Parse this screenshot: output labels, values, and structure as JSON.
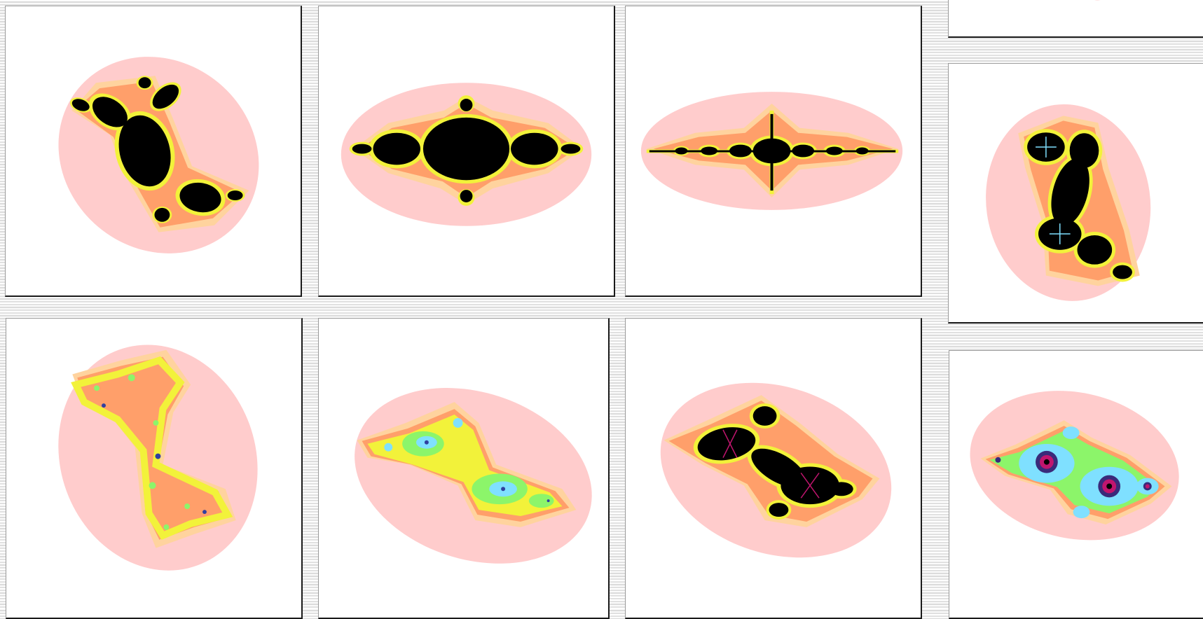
{
  "panels": [
    {
      "id": "julia-set-1",
      "kind": "black-dendrite-diagonal"
    },
    {
      "id": "julia-set-2",
      "kind": "black-horizontal-lobes"
    },
    {
      "id": "julia-set-3",
      "kind": "black-thin-horizontal"
    },
    {
      "id": "julia-set-partial",
      "kind": "cropped"
    },
    {
      "id": "julia-set-5",
      "kind": "black-vertical-spirals"
    },
    {
      "id": "julia-set-6",
      "kind": "dust-vertical"
    },
    {
      "id": "julia-set-7",
      "kind": "dust-diagonal"
    },
    {
      "id": "julia-set-8",
      "kind": "black-spiral-diagonal"
    },
    {
      "id": "julia-set-9",
      "kind": "dust-spiral"
    }
  ],
  "colors": {
    "outer_halo": "#ffcccc",
    "middle_halo": "#ffd39e",
    "inner_halo": "#ff9f6a",
    "edge_band": "#f2f23a",
    "fractal_fill": "#000000",
    "dust_cyan": "#7fe0ff",
    "dust_green": "#8cf56a",
    "dust_magenta": "#c0156e",
    "panel_bg": "#ffffff"
  }
}
